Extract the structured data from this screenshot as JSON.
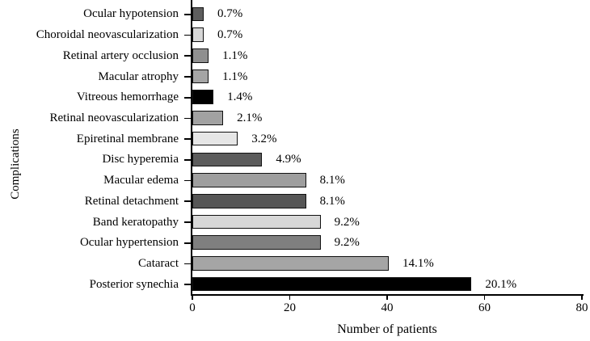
{
  "chart_data": {
    "type": "bar",
    "orientation": "horizontal",
    "title": "",
    "xlabel": "Number of patients",
    "ylabel": "Complications",
    "xlim": [
      0,
      80
    ],
    "xticks": [
      0,
      20,
      40,
      60,
      80
    ],
    "grid": false,
    "legend": false,
    "categories": [
      "Ocular hypotension",
      "Choroidal neovascularization",
      "Retinal artery occlusion",
      "Macular atrophy",
      "Vitreous hemorrhage",
      "Retinal neovascularization",
      "Epiretinal membrane",
      "Disc hyperemia",
      "Macular edema",
      "Retinal detachment",
      "Band keratopathy",
      "Ocular hypertension",
      "Cataract",
      "Posterior synechia"
    ],
    "values": [
      2,
      2,
      3,
      3,
      4,
      6,
      9,
      14,
      23,
      23,
      26,
      26,
      40,
      57
    ],
    "percent_labels": [
      "0.7%",
      "0.7%",
      "1.1%",
      "1.1%",
      "1.4%",
      "2.1%",
      "3.2%",
      "4.9%",
      "8.1%",
      "8.1%",
      "9.2%",
      "9.2%",
      "14.1%",
      "20.1%"
    ],
    "bar_colors": [
      "#5e5e5e",
      "#d7d7d7",
      "#8f8f8f",
      "#a5a5a5",
      "#000000",
      "#a2a2a2",
      "#e6e6e6",
      "#5c5c5c",
      "#9e9e9e",
      "#565656",
      "#d7d7d7",
      "#7f7f7f",
      "#a5a5a5",
      "#000000"
    ],
    "bar_border_color": "#111111",
    "axis_color": "#000000",
    "background": "#ffffff"
  }
}
